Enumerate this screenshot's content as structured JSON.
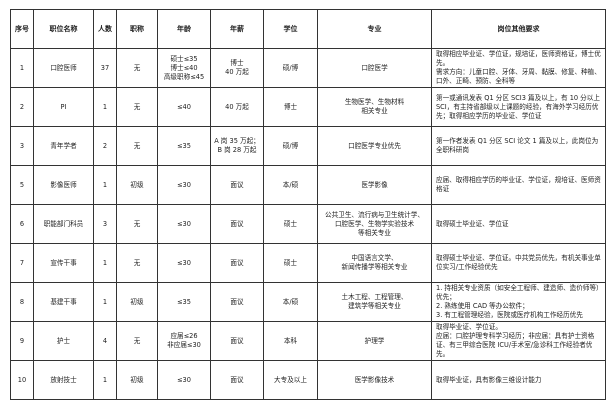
{
  "headers": [
    "序号",
    "职位名称",
    "人数",
    "职称",
    "年龄",
    "年薪",
    "学位",
    "专业",
    "岗位其他要求"
  ],
  "rows": [
    [
      "1",
      "口腔医师",
      "37",
      "无",
      "硕士≤35\n博士≤40\n高级职称≤45",
      "博士\n40 万起",
      "硕/博",
      "口腔医学",
      "取得相应毕业证、学位证，规培证，医师资格证，博士优先。\n需求方向：儿童口腔、牙体、牙周、黏膜、修复、种植、口外、正畸、预防、全科等"
    ],
    [
      "2",
      "PI",
      "1",
      "无",
      "≤40",
      "40 万起",
      "博士",
      "生物医学、生物材料\n相关专业",
      "第一或通讯发表 Q1 分区 SCI3 篇及以上，有 10 分以上 SCI，有主持省部级以上课题的经验，有海外学习经历优先；取得相应学历的毕业证、学位证"
    ],
    [
      "3",
      "青年学者",
      "2",
      "无",
      "≤35",
      "A 岗 35 万起；\nB 岗 28 万起",
      "硕/博",
      "口腔医学专业优先",
      "第一作者发表 Q1 分区 SCI 论文 1 篇及以上，此岗位为全职科研岗"
    ],
    [
      "5",
      "影像医师",
      "1",
      "初级",
      "≤30",
      "面议",
      "本/硕",
      "医学影像",
      "应届、取得相应学历的毕业证、学位证，规培证、医师资格证"
    ],
    [
      "6",
      "职能部门科员",
      "3",
      "无",
      "≤30",
      "面议",
      "硕士",
      "公共卫生、流行病与卫生统计学、\n口腔医学、生物学实验技术\n等相关专业",
      "取得硕士毕业证、学位证"
    ],
    [
      "7",
      "宣传干事",
      "1",
      "无",
      "≤30",
      "面议",
      "硕士",
      "中国语言文学、\n新闻传播学等相关专业",
      "取得硕士毕业证、学位证。中共党员优先，有机关事业单位实习/工作经验优先"
    ],
    [
      "8",
      "基建干事",
      "1",
      "初级",
      "≤35",
      "面议",
      "本/硕",
      "土木工程、工程管理、\n建筑学等相关专业",
      "1. 持相关专业资质（如安全工程师、建造师、造价师等）优先；\n2. 熟练使用 CAD 等办公软件；\n3. 有工程管理经验，医院或医疗机构工作经历优先"
    ],
    [
      "9",
      "护士",
      "4",
      "无",
      "应届≤26\n非应届≤30",
      "面议",
      "本科",
      "护理学",
      "取得毕业证、学位证。\n应届：口腔护理专科学习经历；非应届：具有护士资格证、有三甲综合医院 ICU/手术室/急诊科工作经验者优先。"
    ],
    [
      "10",
      "放射技士",
      "1",
      "初级",
      "≤30",
      "面议",
      "大专及以上",
      "医学影像技术",
      "取得毕业证，具有影像三维设计能力"
    ]
  ]
}
